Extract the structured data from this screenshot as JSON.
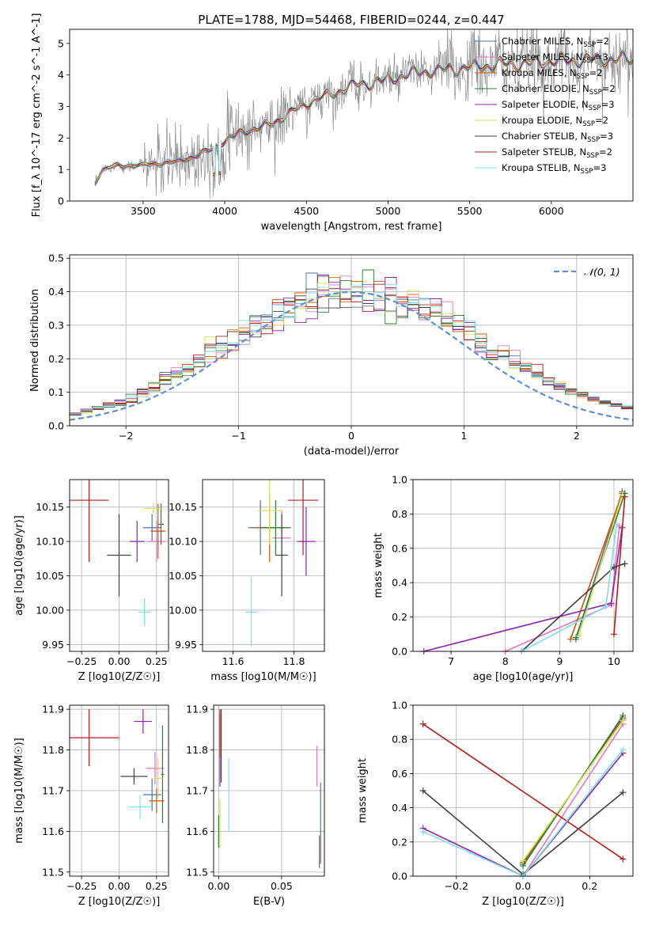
{
  "figure": {
    "title": "PLATE=1788, MJD=54468, FIBERID=0244, z=0.447"
  },
  "series_styles": [
    {
      "name": "Chabrier MILES, N$_{SSP}$=2",
      "label_main": "Chabrier MILES, N",
      "label_sub": "SSP",
      "label_tail": "=2",
      "color": "#4c72b0"
    },
    {
      "name": "Salpeter MILES, N$_{SSP}$=3",
      "label_main": "Salpeter MILES, N",
      "label_sub": "SSP",
      "label_tail": "=3",
      "color": "#e377c2"
    },
    {
      "name": "Kroupa MILES, N$_{SSP}$=2",
      "label_main": "Kroupa MILES, N",
      "label_sub": "SSP",
      "label_tail": "=2",
      "color": "#d35400"
    },
    {
      "name": "Chabrier ELODIE, N$_{SSP}$=2",
      "label_main": "Chabrier ELODIE, N",
      "label_sub": "SSP",
      "label_tail": "=2",
      "color": "#2e7d32"
    },
    {
      "name": "Salpeter ELODIE, N$_{SSP}$=3",
      "label_main": "Salpeter ELODIE, N",
      "label_sub": "SSP",
      "label_tail": "=3",
      "color": "#8e24aa"
    },
    {
      "name": "Kroupa ELODIE, N$_{SSP}$=2",
      "label_main": "Kroupa ELODIE, N",
      "label_sub": "SSP",
      "label_tail": "=2",
      "color": "#d4e157"
    },
    {
      "name": "Chabrier STELIB, N$_{SSP}$=3",
      "label_main": "Chabrier STELIB, N",
      "label_sub": "SSP",
      "label_tail": "=3",
      "color": "#404040"
    },
    {
      "name": "Salpeter STELIB, N$_{SSP}$=2",
      "label_main": "Salpeter STELIB, N",
      "label_sub": "SSP",
      "label_tail": "=2",
      "color": "#b71c1c"
    },
    {
      "name": "Kroupa STELIB, N$_{SSP}$=3",
      "label_main": "Kroupa STELIB, N",
      "label_sub": "SSP",
      "label_tail": "=3",
      "color": "#80deea"
    }
  ],
  "chart_data": [
    {
      "id": "spectrum",
      "type": "line",
      "xlabel": "wavelength [Angstrom, rest frame]",
      "ylabel": "Flux [f_λ 10^-17 erg cm^-2 s^-1 A^-1]",
      "xlim": [
        3050,
        6500
      ],
      "ylim": [
        0,
        5.45
      ],
      "xticks": [
        3500,
        4000,
        4500,
        5000,
        5500,
        6000
      ],
      "yticks": [
        0,
        1,
        2,
        3,
        4,
        5
      ],
      "grid": false,
      "legend": "upper-right",
      "data_color": "#808080",
      "continuum_knots": {
        "x": [
          3200,
          3250,
          3300,
          3500,
          3600,
          3700,
          3800,
          3900,
          4000,
          4100,
          4200,
          4300,
          4400,
          4500,
          4600,
          4700,
          4800,
          4900,
          5000,
          5100,
          5200,
          5300,
          5400,
          5500,
          5600,
          5700,
          5800,
          5900,
          6000,
          6100,
          6200,
          6300
        ],
        "y": [
          0.5,
          1.0,
          1.1,
          1.15,
          1.2,
          1.25,
          1.4,
          1.6,
          1.9,
          2.2,
          2.3,
          2.5,
          2.8,
          3.1,
          3.3,
          3.5,
          3.7,
          3.75,
          3.85,
          4.0,
          4.1,
          4.15,
          4.2,
          4.25,
          4.3,
          4.35,
          4.35,
          4.4,
          4.45,
          4.45,
          4.5,
          4.5
        ]
      }
    },
    {
      "id": "residuals",
      "type": "line",
      "xlabel": "(data-model)/error",
      "ylabel": "Normed distribution",
      "xlim": [
        -2.5,
        2.5
      ],
      "ylim": [
        0,
        0.51
      ],
      "xticks": [
        -2,
        -1,
        0,
        1,
        2
      ],
      "yticks": [
        0.0,
        0.1,
        0.2,
        0.3,
        0.4,
        0.5
      ],
      "grid": true,
      "legend": "upper-right",
      "reference": {
        "name": "𝒩(0, 1)",
        "color": "#5b8fd6",
        "mean": 0,
        "sigma": 1
      },
      "bin_width": 0.1
    },
    {
      "id": "z-age",
      "type": "scatter",
      "xlabel": "Z [log10(Z/Z☉)]",
      "ylabel": "age [log10(age/yr)]",
      "xlim": [
        -0.33,
        0.33
      ],
      "ylim": [
        9.94,
        10.19
      ],
      "xticks": [
        -0.25,
        0.0,
        0.25
      ],
      "yticks": [
        9.95,
        10.0,
        10.05,
        10.1,
        10.15
      ],
      "grid": true,
      "points": [
        {
          "x": 0.22,
          "y": 10.12,
          "xerr": 0.06,
          "yerr": 0.02
        },
        {
          "x": 0.25,
          "y": 10.1,
          "xerr": 0.06,
          "yerr": 0.03
        },
        {
          "x": 0.26,
          "y": 10.115,
          "xerr": 0.05,
          "yerr": 0.04
        },
        {
          "x": 0.28,
          "y": 10.125,
          "xerr": 0.02,
          "yerr": 0.03
        },
        {
          "x": 0.12,
          "y": 10.1,
          "xerr": 0.05,
          "yerr": 0.03
        },
        {
          "x": 0.23,
          "y": 10.148,
          "xerr": 0.06,
          "yerr": 0.008
        },
        {
          "x": 0.0,
          "y": 10.08,
          "xerr": 0.08,
          "yerr": 0.06
        },
        {
          "x": -0.2,
          "y": 10.16,
          "xerr": 0.13,
          "yerr": 0.09
        },
        {
          "x": 0.17,
          "y": 9.997,
          "xerr": 0.04,
          "yerr": 0.02
        }
      ]
    },
    {
      "id": "mass-age",
      "type": "scatter",
      "xlabel": "mass [log10(M/M☉)]",
      "ylabel": "",
      "xlim": [
        11.5,
        11.9
      ],
      "ylim": [
        9.94,
        10.19
      ],
      "xticks": [
        11.6,
        11.8
      ],
      "yticks": [
        9.95,
        10.0,
        10.05,
        10.1,
        10.15
      ],
      "grid": true,
      "points": [
        {
          "x": 11.69,
          "y": 10.12,
          "xerr": 0.04,
          "yerr": 0.04
        },
        {
          "x": 11.76,
          "y": 10.105,
          "xerr": 0.03,
          "yerr": 0.04
        },
        {
          "x": 11.72,
          "y": 10.12,
          "xerr": 0.05,
          "yerr": 0.05
        },
        {
          "x": 11.74,
          "y": 10.12,
          "xerr": 0.05,
          "yerr": 0.04
        },
        {
          "x": 11.84,
          "y": 10.1,
          "xerr": 0.03,
          "yerr": 0.05
        },
        {
          "x": 11.72,
          "y": 10.145,
          "xerr": 0.04,
          "yerr": 0.05
        },
        {
          "x": 11.76,
          "y": 10.08,
          "xerr": 0.02,
          "yerr": 0.06
        },
        {
          "x": 11.83,
          "y": 10.16,
          "xerr": 0.05,
          "yerr": 0.08
        },
        {
          "x": 11.66,
          "y": 9.997,
          "xerr": 0.02,
          "yerr": 0.05
        }
      ]
    },
    {
      "id": "age-weight",
      "type": "line",
      "xlabel": "age [log10(age/yr)]",
      "ylabel": "mass weight",
      "xlim": [
        6.3,
        10.35
      ],
      "ylim": [
        0,
        1.0
      ],
      "xticks": [
        7,
        8,
        9,
        10
      ],
      "yticks": [
        0.0,
        0.2,
        0.4,
        0.6,
        0.8,
        1.0
      ],
      "grid": true,
      "series": [
        {
          "x": [
            9.3,
            10.15
          ],
          "y": [
            0.07,
            0.93
          ]
        },
        {
          "x": [
            8.0,
            9.95,
            10.1
          ],
          "y": [
            0.0,
            0.27,
            0.73
          ]
        },
        {
          "x": [
            9.2,
            10.15
          ],
          "y": [
            0.07,
            0.92
          ]
        },
        {
          "x": [
            9.3,
            10.2
          ],
          "y": [
            0.08,
            0.92
          ]
        },
        {
          "x": [
            6.5,
            9.95,
            10.15
          ],
          "y": [
            0.0,
            0.28,
            0.72
          ]
        },
        {
          "x": [
            9.35,
            10.15
          ],
          "y": [
            0.09,
            0.91
          ]
        },
        {
          "x": [
            8.3,
            10.0,
            10.2
          ],
          "y": [
            0.0,
            0.49,
            0.51
          ]
        },
        {
          "x": [
            10.0,
            10.2
          ],
          "y": [
            0.1,
            0.9
          ]
        },
        {
          "x": [
            8.3,
            9.85,
            10.05
          ],
          "y": [
            0.0,
            0.26,
            0.74
          ]
        }
      ]
    },
    {
      "id": "z-mass",
      "type": "scatter",
      "xlabel": "Z [log10(Z/Z☉)]",
      "ylabel": "mass [log10(M/M☉)]",
      "xlim": [
        -0.33,
        0.33
      ],
      "ylim": [
        11.49,
        11.91
      ],
      "xticks": [
        -0.25,
        0.0,
        0.25
      ],
      "yticks": [
        11.5,
        11.6,
        11.7,
        11.8,
        11.9
      ],
      "grid": true,
      "points": [
        {
          "x": 0.22,
          "y": 11.69,
          "xerr": 0.06,
          "yerr": 0.04
        },
        {
          "x": 0.24,
          "y": 11.755,
          "xerr": 0.06,
          "yerr": 0.04
        },
        {
          "x": 0.25,
          "y": 11.675,
          "xerr": 0.05,
          "yerr": 0.03
        },
        {
          "x": 0.29,
          "y": 11.74,
          "xerr": 0.01,
          "yerr": 0.12
        },
        {
          "x": 0.16,
          "y": 11.87,
          "xerr": 0.06,
          "yerr": 0.03
        },
        {
          "x": 0.26,
          "y": 11.73,
          "xerr": 0.03,
          "yerr": 0.05
        },
        {
          "x": 0.1,
          "y": 11.735,
          "xerr": 0.09,
          "yerr": 0.02
        },
        {
          "x": -0.2,
          "y": 11.83,
          "xerr": 0.2,
          "yerr": 0.07
        },
        {
          "x": 0.14,
          "y": 11.66,
          "xerr": 0.07,
          "yerr": 0.03
        }
      ]
    },
    {
      "id": "ebv-mass",
      "type": "scatter",
      "xlabel": "E(B-V)",
      "ylabel": "",
      "xlim": [
        -0.004,
        0.084
      ],
      "ylim": [
        11.49,
        11.91
      ],
      "xticks": [
        0.0,
        0.05
      ],
      "yticks": [
        11.5,
        11.6,
        11.7,
        11.8,
        11.9
      ],
      "grid": true,
      "points": [
        {
          "x": 0.081,
          "y": 11.62,
          "xerr": 0,
          "yerr": 0.1
        },
        {
          "x": 0.078,
          "y": 11.76,
          "xerr": 0,
          "yerr": 0.05
        },
        {
          "x": 0.08,
          "y": 11.55,
          "xerr": 0,
          "yerr": 0.04
        },
        {
          "x": 0.0,
          "y": 11.6,
          "xerr": 0,
          "yerr": 0.04
        },
        {
          "x": 0.001,
          "y": 11.8,
          "xerr": 0,
          "yerr": 0.09
        },
        {
          "x": 0.001,
          "y": 11.62,
          "xerr": 0,
          "yerr": 0.06
        },
        {
          "x": 0.002,
          "y": 11.81,
          "xerr": 0,
          "yerr": 0.09
        },
        {
          "x": 0.001,
          "y": 11.84,
          "xerr": 0,
          "yerr": 0.06
        },
        {
          "x": 0.008,
          "y": 11.69,
          "xerr": 0,
          "yerr": 0.09
        }
      ]
    },
    {
      "id": "z-weight",
      "type": "line",
      "xlabel": "Z [log10(Z/Z☉)]",
      "ylabel": "mass weight",
      "xlim": [
        -0.33,
        0.33
      ],
      "ylim": [
        0,
        1.0
      ],
      "xticks": [
        -0.2,
        0.0,
        0.2
      ],
      "yticks": [
        0.0,
        0.2,
        0.4,
        0.6,
        0.8,
        1.0
      ],
      "grid": true,
      "series": [
        {
          "x": [
            0.0,
            0.3
          ],
          "y": [
            0.07,
            0.93
          ]
        },
        {
          "x": [
            0.0,
            0.3
          ],
          "y": [
            0.0,
            0.89
          ]
        },
        {
          "x": [
            0.0,
            0.3
          ],
          "y": [
            0.08,
            0.92
          ]
        },
        {
          "x": [
            0.0,
            0.3
          ],
          "y": [
            0.06,
            0.94
          ]
        },
        {
          "x": [
            -0.3,
            0.0,
            0.3
          ],
          "y": [
            0.28,
            0.0,
            0.72
          ]
        },
        {
          "x": [
            0.0,
            0.3
          ],
          "y": [
            0.09,
            0.91
          ]
        },
        {
          "x": [
            -0.3,
            0.0,
            0.3
          ],
          "y": [
            0.5,
            0.01,
            0.49
          ]
        },
        {
          "x": [
            -0.3,
            0.3
          ],
          "y": [
            0.89,
            0.1
          ]
        },
        {
          "x": [
            -0.3,
            0.0,
            0.3
          ],
          "y": [
            0.26,
            0.0,
            0.74
          ]
        }
      ]
    }
  ]
}
